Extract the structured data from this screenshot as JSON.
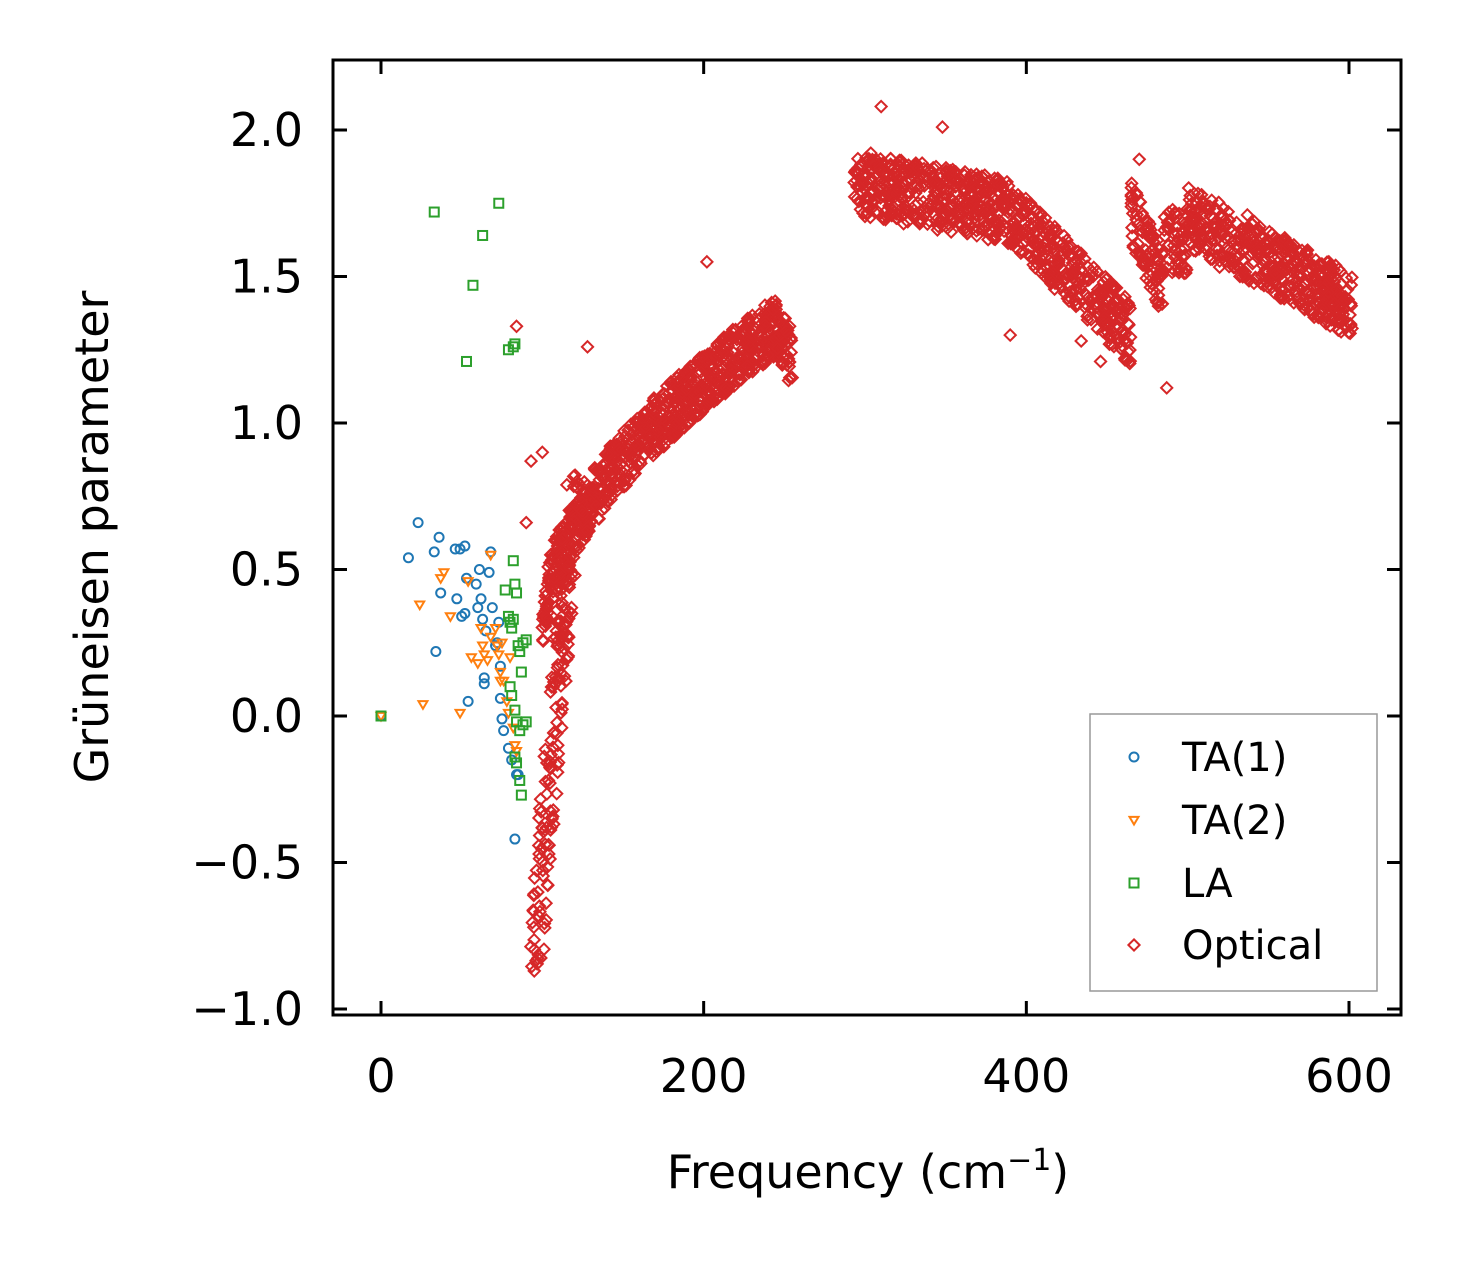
{
  "chart_data": {
    "type": "scatter",
    "title": "",
    "xlabel_base": "Frequency (cm",
    "xlabel_sup": "−1",
    "xlabel_close": ")",
    "ylabel": "Grüneisen parameter",
    "xlim": [
      -30,
      630
    ],
    "ylim": [
      -1.0,
      2.25
    ],
    "xticks": [
      0,
      200,
      400,
      600
    ],
    "xtick_labels": [
      "0",
      "200",
      "400",
      "600"
    ],
    "yticks": [
      -1.0,
      -0.5,
      0.0,
      0.5,
      1.0,
      1.5,
      2.0
    ],
    "ytick_labels": [
      "−1.0",
      "−0.5",
      "0.0",
      "0.5",
      "1.0",
      "1.5",
      "2.0"
    ],
    "legend_position": "lower-right",
    "series": [
      {
        "name": "TA(1)",
        "marker": "circle",
        "color": "#1f77b4",
        "points": [
          [
            0,
            0.0
          ],
          [
            17,
            0.54
          ],
          [
            23,
            0.66
          ],
          [
            33,
            0.56
          ],
          [
            34,
            0.22
          ],
          [
            36,
            0.61
          ],
          [
            37,
            0.42
          ],
          [
            46,
            0.57
          ],
          [
            47,
            0.4
          ],
          [
            49,
            0.57
          ],
          [
            50,
            0.34
          ],
          [
            52,
            0.35
          ],
          [
            52,
            0.58
          ],
          [
            53,
            0.47
          ],
          [
            54,
            0.05
          ],
          [
            59,
            0.45
          ],
          [
            60,
            0.37
          ],
          [
            61,
            0.5
          ],
          [
            62,
            0.4
          ],
          [
            63,
            0.33
          ],
          [
            64,
            0.13
          ],
          [
            64,
            0.11
          ],
          [
            65,
            0.29
          ],
          [
            67,
            0.49
          ],
          [
            68,
            0.56
          ],
          [
            69,
            0.37
          ],
          [
            71,
            0.24
          ],
          [
            72,
            0.25
          ],
          [
            73,
            0.32
          ],
          [
            74,
            0.17
          ],
          [
            74,
            0.06
          ],
          [
            75,
            -0.01
          ],
          [
            76,
            -0.05
          ],
          [
            79,
            -0.11
          ],
          [
            81,
            -0.15
          ],
          [
            83,
            -0.42
          ],
          [
            84,
            -0.2
          ],
          [
            85,
            -0.2
          ]
        ]
      },
      {
        "name": "TA(2)",
        "marker": "triangle-down",
        "color": "#ff7f0e",
        "points": [
          [
            0,
            0.0
          ],
          [
            24,
            0.38
          ],
          [
            26,
            0.04
          ],
          [
            37,
            0.47
          ],
          [
            39,
            0.49
          ],
          [
            43,
            0.34
          ],
          [
            49,
            0.01
          ],
          [
            54,
            0.46
          ],
          [
            56,
            0.2
          ],
          [
            60,
            0.18
          ],
          [
            62,
            0.3
          ],
          [
            63,
            0.24
          ],
          [
            64,
            0.21
          ],
          [
            66,
            0.19
          ],
          [
            68,
            0.55
          ],
          [
            68,
            0.27
          ],
          [
            71,
            0.3
          ],
          [
            72,
            0.24
          ],
          [
            73,
            0.21
          ],
          [
            74,
            0.15
          ],
          [
            74,
            0.12
          ],
          [
            75,
            0.25
          ],
          [
            76,
            0.12
          ],
          [
            78,
            0.05
          ],
          [
            79,
            0.01
          ],
          [
            80,
            0.2
          ],
          [
            82,
            -0.04
          ],
          [
            83,
            -0.1
          ],
          [
            84,
            -0.12
          ]
        ]
      },
      {
        "name": "LA",
        "marker": "square",
        "color": "#2ca02c",
        "points": [
          [
            0,
            0.0
          ],
          [
            33,
            1.72
          ],
          [
            53,
            1.21
          ],
          [
            57,
            1.47
          ],
          [
            63,
            1.64
          ],
          [
            73,
            1.75
          ],
          [
            79,
            1.25
          ],
          [
            82,
            1.26
          ],
          [
            83,
            1.27
          ],
          [
            82,
            0.53
          ],
          [
            83,
            0.45
          ],
          [
            84,
            0.42
          ],
          [
            77,
            0.43
          ],
          [
            79,
            0.34
          ],
          [
            80,
            0.32
          ],
          [
            81,
            0.3
          ],
          [
            82,
            0.33
          ],
          [
            85,
            0.24
          ],
          [
            86,
            0.22
          ],
          [
            87,
            0.15
          ],
          [
            88,
            0.25
          ],
          [
            90,
            0.26
          ],
          [
            80,
            0.1
          ],
          [
            81,
            0.07
          ],
          [
            83,
            0.02
          ],
          [
            84,
            -0.02
          ],
          [
            86,
            -0.05
          ],
          [
            88,
            -0.03
          ],
          [
            90,
            -0.02
          ],
          [
            83,
            -0.14
          ],
          [
            84,
            -0.16
          ],
          [
            86,
            -0.22
          ],
          [
            87,
            -0.27
          ]
        ]
      },
      {
        "name": "Optical",
        "marker": "diamond",
        "color": "#d62728",
        "points": []
      }
    ]
  }
}
